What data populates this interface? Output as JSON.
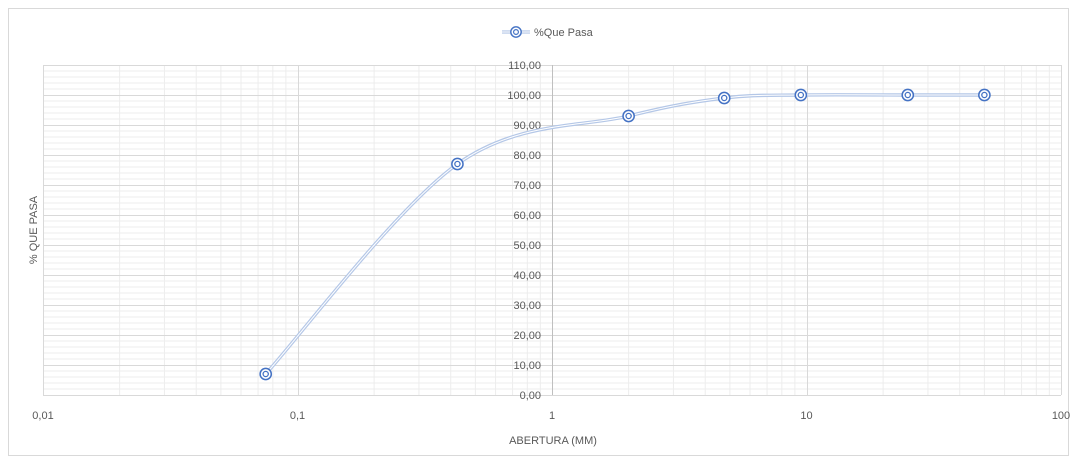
{
  "chart_data": {
    "type": "scatter",
    "x_scale": "log",
    "legend_position": "top-center",
    "grid": true,
    "series": [
      {
        "name": "%Que Pasa",
        "smoothed": true,
        "marker": "double-circle",
        "color": "#4472c4",
        "line_color": "#b4c7e7",
        "points": [
          {
            "x": 0.075,
            "y": 7.0
          },
          {
            "x": 0.425,
            "y": 77.0
          },
          {
            "x": 2.0,
            "y": 93.0
          },
          {
            "x": 4.75,
            "y": 99.0
          },
          {
            "x": 9.5,
            "y": 100.0
          },
          {
            "x": 25.0,
            "y": 100.0
          },
          {
            "x": 50.0,
            "y": 100.0
          }
        ]
      }
    ],
    "xlabel": "ABERTURA (MM)",
    "ylabel": "% QUE PASA",
    "xlim": [
      0.01,
      100
    ],
    "ylim": [
      0,
      110
    ],
    "x_ticks": [
      0.01,
      0.1,
      1,
      10,
      100
    ],
    "x_tick_labels": [
      "0,01",
      "0,1",
      "1",
      "10",
      "100"
    ],
    "y_ticks": [
      0,
      10,
      20,
      30,
      40,
      50,
      60,
      70,
      80,
      90,
      100,
      110
    ],
    "y_tick_labels": [
      "0,00",
      "10,00",
      "20,00",
      "30,00",
      "40,00",
      "50,00",
      "60,00",
      "70,00",
      "80,00",
      "90,00",
      "100,00",
      "110,00"
    ]
  }
}
